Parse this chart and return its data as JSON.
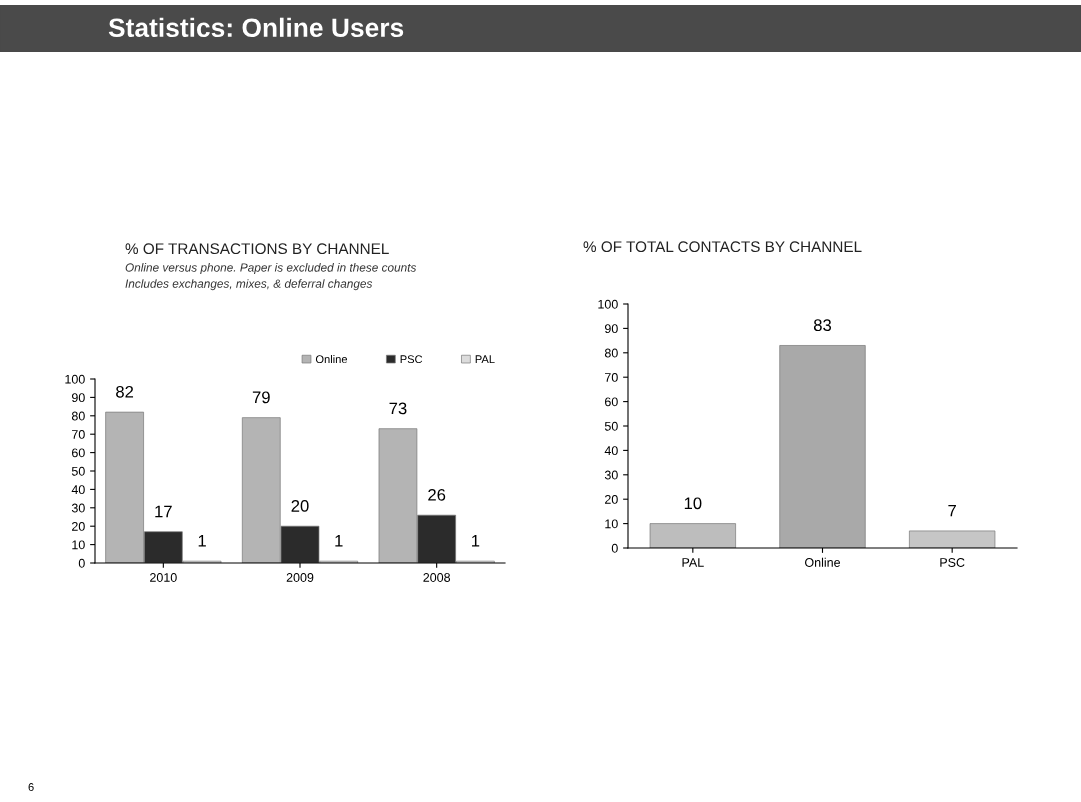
{
  "chart_data": [
    {
      "type": "bar",
      "title": "% OF TRANSACTIONS BY CHANNEL",
      "subtitle": "Online versus phone. Paper is excluded in these counts\nIncludes exchanges, mixes, & deferral changes",
      "annotations": [
        "Statistics: Online Users",
        "6"
      ],
      "categories": [
        "2010",
        "2009",
        "2008"
      ],
      "series": [
        {
          "name": "Online",
          "color": "#b4b4b4",
          "values": [
            82,
            79,
            73
          ]
        },
        {
          "name": "PSC",
          "color": "#2b2b2b",
          "values": [
            17,
            20,
            26
          ]
        },
        {
          "name": "PAL",
          "color": "#dcdcdc",
          "values": [
            1,
            1,
            1
          ]
        }
      ],
      "ylim": [
        0,
        100
      ],
      "yticks": [
        0,
        10,
        20,
        30,
        40,
        50,
        60,
        70,
        80,
        90,
        100
      ],
      "data_labels": true,
      "legend": "top right",
      "grid": false
    },
    {
      "type": "bar",
      "title": "% OF TOTAL CONTACTS BY CHANNEL",
      "categories": [
        "PAL",
        "Online",
        "PSC"
      ],
      "values": [
        10,
        83,
        7
      ],
      "colors": [
        "#bdbdbd",
        "#a9a9a9",
        "#c6c6c6"
      ],
      "ylim": [
        0,
        100
      ],
      "yticks": [
        0,
        10,
        20,
        30,
        40,
        50,
        60,
        70,
        80,
        90,
        100
      ],
      "data_labels": true,
      "grid": false
    }
  ]
}
